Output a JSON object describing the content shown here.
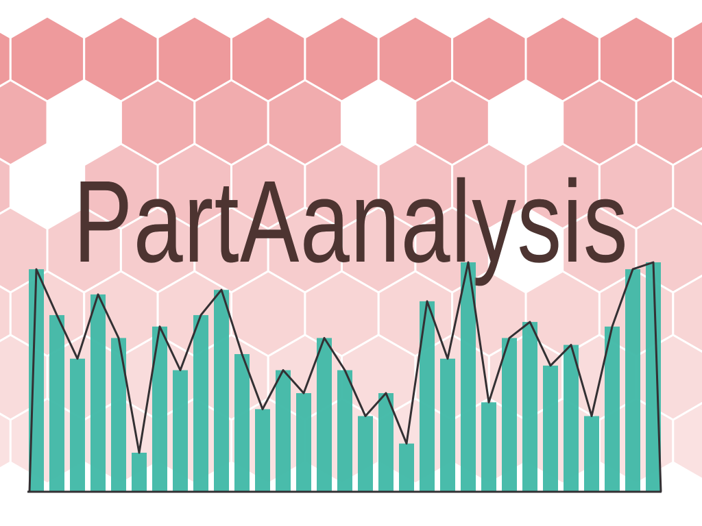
{
  "title": "PartAanalysis",
  "colors": {
    "background": "#ffffff",
    "hexagon": "#ee9a9c",
    "hexagon_stroke": "#ffffff",
    "bar": "#3fb8a6",
    "line": "#333033",
    "title_dark": "#000000",
    "title_faded": "#7d5550"
  },
  "hex_row_opacity": [
    1,
    0.82,
    0.62,
    0.5,
    0.42,
    0.35,
    0.3
  ],
  "hex_hidden": [
    [
      1,
      1
    ],
    [
      1,
      5
    ],
    [
      1,
      7
    ],
    [
      2,
      0
    ],
    [
      3,
      7
    ]
  ],
  "bar_series": [
    0.97,
    0.77,
    0.58,
    0.86,
    0.67,
    0.17,
    0.72,
    0.53,
    0.77,
    0.88,
    0.6,
    0.36,
    0.53,
    0.43,
    0.67,
    0.53,
    0.33,
    0.43,
    0.21,
    0.83,
    0.58,
    1.0,
    0.39,
    0.67,
    0.74,
    0.55,
    0.64,
    0.33,
    0.72,
    0.97,
    1.0
  ],
  "line_series": [
    0.97,
    0.77,
    0.58,
    0.86,
    0.67,
    0.17,
    0.72,
    0.53,
    0.77,
    0.88,
    0.6,
    0.36,
    0.53,
    0.43,
    0.67,
    0.53,
    0.33,
    0.43,
    0.21,
    0.83,
    0.58,
    1.0,
    0.39,
    0.67,
    0.74,
    0.55,
    0.64,
    0.33,
    0.72,
    0.97,
    1.0
  ]
}
